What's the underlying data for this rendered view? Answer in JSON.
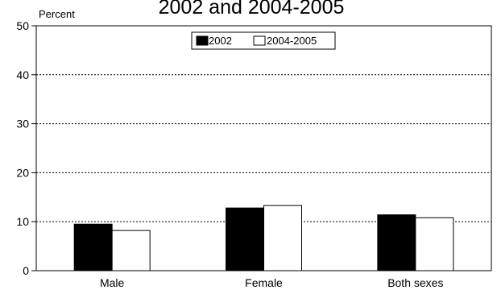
{
  "chart_data": {
    "type": "bar",
    "title": "2002 and 2004-2005",
    "ylabel": "Percent",
    "xlabel": "",
    "categories": [
      "Male",
      "Female",
      "Both sexes"
    ],
    "series": [
      {
        "name": "2002",
        "values": [
          9.5,
          12.8,
          11.4
        ],
        "color": "#000000"
      },
      {
        "name": "2004-2005",
        "values": [
          8.2,
          13.3,
          10.8
        ],
        "color": "#ffffff"
      }
    ],
    "ylim": [
      0,
      50
    ],
    "yticks": [
      "0",
      "10",
      "20",
      "30",
      "40",
      "50"
    ],
    "grid": true,
    "legend_position": "top-center"
  }
}
